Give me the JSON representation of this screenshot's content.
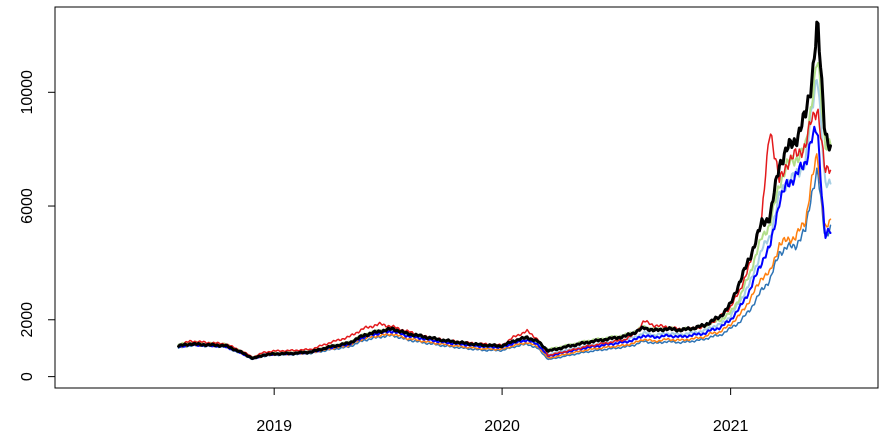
{
  "chart_data": {
    "type": "line",
    "title": "",
    "xlabel": "",
    "ylabel": "",
    "x_ticks": [
      "2019",
      "2020",
      "2021"
    ],
    "y_ticks": [
      0,
      2000,
      6000,
      10000
    ],
    "xlim": [
      "2018-01-15",
      "2021-08-25"
    ],
    "ylim": [
      -400,
      13000
    ],
    "grid": false,
    "legend": "none",
    "anchor_dates": [
      "2018-08-01",
      "2018-08-20",
      "2018-09-15",
      "2018-10-15",
      "2018-11-10",
      "2018-11-28",
      "2018-12-15",
      "2019-01-01",
      "2019-02-01",
      "2019-03-01",
      "2019-04-01",
      "2019-05-01",
      "2019-05-25",
      "2019-06-20",
      "2019-07-10",
      "2019-08-01",
      "2019-09-01",
      "2019-10-01",
      "2019-11-01",
      "2019-12-01",
      "2020-01-01",
      "2020-01-20",
      "2020-02-10",
      "2020-02-28",
      "2020-03-15",
      "2020-04-15",
      "2020-05-15",
      "2020-06-15",
      "2020-07-15",
      "2020-08-01",
      "2020-08-15",
      "2020-09-01",
      "2020-09-20",
      "2020-10-15",
      "2020-11-01",
      "2020-11-20",
      "2020-12-01",
      "2020-12-15",
      "2021-01-01",
      "2021-01-15",
      "2021-02-01",
      "2021-02-20",
      "2021-03-05",
      "2021-03-20",
      "2021-04-01",
      "2021-04-15",
      "2021-05-01",
      "2021-05-10",
      "2021-05-20",
      "2021-06-01",
      "2021-06-10"
    ],
    "series": [
      {
        "color": "#2E74B5",
        "lw": 1.5,
        "values": [
          1000,
          1100,
          1080,
          1050,
          800,
          600,
          720,
          760,
          780,
          820,
          950,
          1050,
          1280,
          1400,
          1450,
          1300,
          1180,
          1080,
          1000,
          930,
          920,
          1050,
          1150,
          980,
          600,
          740,
          870,
          960,
          1040,
          1120,
          1250,
          1170,
          1230,
          1200,
          1250,
          1310,
          1410,
          1450,
          1700,
          1910,
          2350,
          3050,
          3400,
          4350,
          4550,
          4600,
          5150,
          6400,
          7200,
          4980,
          5200
        ]
      },
      {
        "color": "#FF7F0E",
        "lw": 1.5,
        "values": [
          1050,
          1120,
          1100,
          1080,
          820,
          620,
          740,
          780,
          800,
          840,
          980,
          1100,
          1350,
          1450,
          1500,
          1350,
          1230,
          1130,
          1050,
          980,
          960,
          1100,
          1200,
          1050,
          650,
          800,
          940,
          1030,
          1100,
          1190,
          1320,
          1240,
          1310,
          1280,
          1330,
          1400,
          1520,
          1570,
          1840,
          2150,
          2700,
          3500,
          3650,
          4650,
          4800,
          4900,
          5500,
          6800,
          7800,
          5200,
          5400
        ]
      },
      {
        "color": "#A6CEE3",
        "lw": 2,
        "values": [
          1100,
          1180,
          1150,
          1120,
          870,
          660,
          780,
          820,
          840,
          880,
          1050,
          1180,
          1450,
          1580,
          1650,
          1480,
          1350,
          1230,
          1150,
          1070,
          1040,
          1200,
          1310,
          1160,
          780,
          950,
          1090,
          1190,
          1290,
          1390,
          1540,
          1460,
          1520,
          1480,
          1540,
          1610,
          1750,
          1820,
          2120,
          2620,
          3280,
          4480,
          4900,
          6350,
          6850,
          7050,
          7550,
          9200,
          10800,
          6700,
          6900
        ]
      },
      {
        "color": "#B2DF8A",
        "lw": 2,
        "values": [
          1120,
          1200,
          1170,
          1140,
          880,
          670,
          790,
          830,
          850,
          890,
          1070,
          1200,
          1480,
          1620,
          1680,
          1510,
          1380,
          1260,
          1170,
          1090,
          1060,
          1220,
          1330,
          1180,
          950,
          1100,
          1250,
          1350,
          1450,
          1600,
          1750,
          1650,
          1700,
          1650,
          1700,
          1780,
          1900,
          1980,
          2250,
          2750,
          3650,
          4900,
          5350,
          6750,
          7450,
          7650,
          8050,
          9600,
          11200,
          8200,
          8300
        ]
      },
      {
        "color": "#0000FF",
        "lw": 2,
        "values": [
          1050,
          1120,
          1100,
          1060,
          820,
          630,
          750,
          790,
          810,
          860,
          1020,
          1140,
          1400,
          1540,
          1600,
          1440,
          1320,
          1200,
          1130,
          1060,
          1030,
          1180,
          1290,
          1120,
          720,
          880,
          1020,
          1120,
          1210,
          1300,
          1450,
          1380,
          1440,
          1400,
          1460,
          1520,
          1640,
          1720,
          2000,
          2400,
          3050,
          4050,
          4550,
          6150,
          6750,
          7050,
          7550,
          8300,
          8700,
          4950,
          5100
        ]
      },
      {
        "color": "#E31A1C",
        "lw": 1.5,
        "values": [
          1100,
          1250,
          1200,
          1150,
          900,
          680,
          850,
          900,
          920,
          960,
          1200,
          1400,
          1700,
          1850,
          1750,
          1600,
          1400,
          1280,
          1200,
          1150,
          1100,
          1400,
          1600,
          1300,
          750,
          900,
          1060,
          1180,
          1300,
          1500,
          1950,
          1800,
          1750,
          1650,
          1700,
          1750,
          1900,
          2100,
          2450,
          3000,
          3950,
          5600,
          8800,
          6850,
          7500,
          7800,
          8100,
          9000,
          9500,
          7200,
          7400
        ]
      },
      {
        "color": "#000000",
        "lw": 3,
        "values": [
          1080,
          1150,
          1120,
          1090,
          850,
          640,
          760,
          800,
          820,
          870,
          1050,
          1180,
          1460,
          1600,
          1680,
          1520,
          1390,
          1270,
          1180,
          1110,
          1080,
          1260,
          1380,
          1230,
          900,
          1060,
          1200,
          1310,
          1410,
          1560,
          1720,
          1620,
          1680,
          1640,
          1700,
          1800,
          1950,
          2100,
          2550,
          3300,
          4200,
          5400,
          5600,
          7450,
          8000,
          8300,
          9200,
          10300,
          12400,
          8700,
          8000
        ]
      }
    ]
  }
}
